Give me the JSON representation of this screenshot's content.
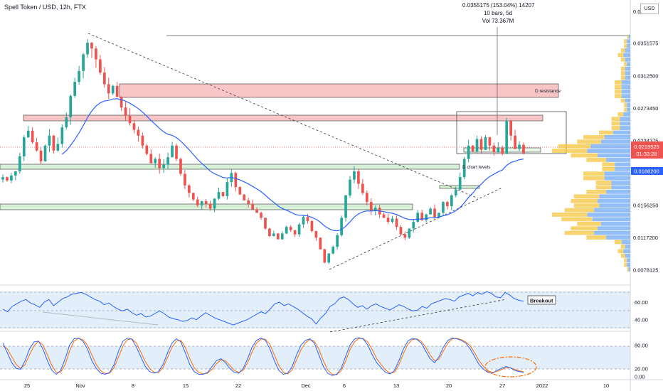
{
  "header": {
    "symbol_line": "Spell Token / USD, 12h, FTX",
    "currency": "USD"
  },
  "measure_tooltip": {
    "line1": "0.0355175 (153.04%) 14207",
    "line2": "10 bars, 5d",
    "line3": "Vol 73.367M"
  },
  "labels": {
    "d_resistance": "D resistance",
    "d_chart_levels": "D chart levels",
    "breakout": "Breakout"
  },
  "colors": {
    "up": "#26a69a",
    "down": "#ef5350",
    "ma": "#2962ff",
    "rsi": "#2962ff",
    "stoch_k": "#2962ff",
    "stoch_d": "#ff6d00",
    "resistance_zone": "#f8c6c6",
    "support_zone": "#d7f0d7",
    "price_badge": "#ef5350",
    "ma_badge": "#2962ff"
  },
  "chart_data": [
    {
      "type": "candlestick",
      "title": "Spell Token / USD, 12h, FTX",
      "y_ticks": [
        "0.0390025",
        "0.0351575",
        "0.0312500",
        "0.0273450",
        "0.0234375",
        "0.0195325",
        "0.0156250",
        "0.0117200",
        "0.0078125"
      ],
      "ylim": [
        0.0065,
        0.0395
      ],
      "x_ticks": [
        "25",
        "Nov",
        "8",
        "15",
        "22",
        "Dec",
        "6",
        "13",
        "20",
        "27",
        "2022",
        "10"
      ],
      "last_price": "0.0219525",
      "countdown": "01:33:28",
      "ma_value": "0.0188200",
      "close_series": [
        0.019,
        0.0186,
        0.0192,
        0.0197,
        0.0215,
        0.0238,
        0.0246,
        0.0232,
        0.0222,
        0.0209,
        0.0228,
        0.024,
        0.0222,
        0.023,
        0.025,
        0.0262,
        0.0288,
        0.0305,
        0.0318,
        0.0338,
        0.0352,
        0.0345,
        0.0332,
        0.0316,
        0.0302,
        0.0291,
        0.03,
        0.0287,
        0.0274,
        0.0264,
        0.0255,
        0.0247,
        0.024,
        0.0228,
        0.0218,
        0.0207,
        0.0212,
        0.0201,
        0.0205,
        0.0214,
        0.0228,
        0.0212,
        0.0194,
        0.018,
        0.0171,
        0.0163,
        0.0156,
        0.0161,
        0.0158,
        0.0152,
        0.0164,
        0.0172,
        0.0167,
        0.0184,
        0.0195,
        0.0178,
        0.0169,
        0.0162,
        0.0158,
        0.0151,
        0.0147,
        0.0141,
        0.0128,
        0.0119,
        0.0122,
        0.0115,
        0.0122,
        0.013,
        0.0126,
        0.0121,
        0.0133,
        0.0142,
        0.0137,
        0.0125,
        0.0117,
        0.0103,
        0.0087,
        0.0098,
        0.0106,
        0.012,
        0.0141,
        0.0168,
        0.0187,
        0.0197,
        0.0182,
        0.0171,
        0.016,
        0.0149,
        0.0153,
        0.0145,
        0.0141,
        0.0136,
        0.014,
        0.013,
        0.0121,
        0.0117,
        0.0128,
        0.0136,
        0.0147,
        0.0138,
        0.0145,
        0.0152,
        0.0142,
        0.0147,
        0.016,
        0.0155,
        0.0168,
        0.0175,
        0.019,
        0.0212,
        0.0228,
        0.0221,
        0.0236,
        0.0223,
        0.0238,
        0.0228,
        0.022,
        0.0225,
        0.0218,
        0.0258,
        0.024,
        0.0224,
        0.0229,
        0.0219
      ]
    },
    {
      "type": "line",
      "title": "RSI",
      "y_ticks": [
        "60.00",
        "40.00"
      ],
      "ylim": [
        30,
        77
      ],
      "series": [
        {
          "values": [
            52,
            49,
            55,
            58,
            61,
            63,
            59,
            57,
            54,
            60,
            63,
            56,
            60,
            64,
            66,
            69,
            70,
            71,
            69,
            66,
            63,
            61,
            57,
            59,
            55,
            52,
            50,
            52,
            48,
            45,
            47,
            43,
            44,
            47,
            50,
            47,
            43,
            41,
            40,
            38,
            39,
            42,
            40,
            44,
            48,
            45,
            42,
            40,
            38,
            36,
            34,
            36,
            38,
            40,
            43,
            46,
            49,
            47,
            52,
            58,
            60,
            56,
            58,
            55,
            52,
            48,
            44,
            41,
            35,
            42,
            47,
            55,
            58,
            64,
            66,
            63,
            58,
            54,
            56,
            52,
            56,
            58,
            55,
            53,
            51,
            54,
            57,
            55,
            52,
            50,
            51,
            55,
            53,
            58,
            60,
            62,
            64,
            63,
            61,
            66,
            68,
            70,
            67,
            71,
            69,
            72,
            70,
            66,
            65,
            71,
            68,
            64,
            62,
            61
          ]
        }
      ]
    },
    {
      "type": "line",
      "title": "Stochastic RSI",
      "y_ticks": [
        "80.00",
        "20.00",
        "0.00"
      ],
      "ylim": [
        -5,
        108
      ],
      "series": [
        {
          "values": [
            85,
            60,
            35,
            20,
            18,
            40,
            70,
            88,
            90,
            70,
            40,
            15,
            5,
            15,
            45,
            80,
            96,
            98,
            90,
            70,
            40,
            20,
            8,
            5,
            10,
            30,
            65,
            90,
            98,
            95,
            75,
            50,
            25,
            12,
            8,
            12,
            30,
            60,
            85,
            96,
            88,
            60,
            30,
            12,
            5,
            5,
            10,
            25,
            40,
            45,
            35,
            20,
            10,
            8,
            20,
            45,
            75,
            92,
            98,
            92,
            70,
            40,
            15,
            5,
            8,
            25,
            55,
            80,
            92,
            96,
            85,
            55,
            25,
            8,
            2,
            5,
            20,
            50,
            80,
            95,
            99,
            95,
            80,
            55,
            35,
            22,
            10,
            6,
            15,
            40,
            70,
            90,
            97,
            95,
            85,
            65,
            45,
            35,
            50,
            75,
            92,
            98,
            96,
            92,
            85,
            70,
            50,
            30,
            18,
            10,
            8,
            15,
            20,
            25,
            22,
            15,
            12,
            10
          ]
        },
        {
          "values": [
            78,
            70,
            50,
            30,
            20,
            30,
            55,
            78,
            90,
            80,
            55,
            28,
            10,
            10,
            30,
            65,
            90,
            97,
            94,
            80,
            55,
            30,
            14,
            7,
            8,
            22,
            50,
            78,
            94,
            96,
            85,
            62,
            38,
            20,
            10,
            10,
            22,
            48,
            74,
            90,
            92,
            74,
            45,
            22,
            10,
            6,
            8,
            18,
            32,
            42,
            40,
            28,
            15,
            10,
            15,
            35,
            62,
            85,
            95,
            95,
            82,
            55,
            28,
            10,
            6,
            16,
            42,
            68,
            86,
            94,
            90,
            70,
            40,
            16,
            5,
            4,
            14,
            38,
            68,
            88,
            97,
            96,
            88,
            68,
            45,
            30,
            16,
            8,
            10,
            30,
            58,
            82,
            94,
            96,
            90,
            75,
            55,
            40,
            44,
            65,
            85,
            96,
            97,
            94,
            88,
            78,
            60,
            40,
            25,
            14,
            10,
            12,
            17,
            22,
            22,
            18,
            14,
            12
          ]
        }
      ]
    }
  ]
}
